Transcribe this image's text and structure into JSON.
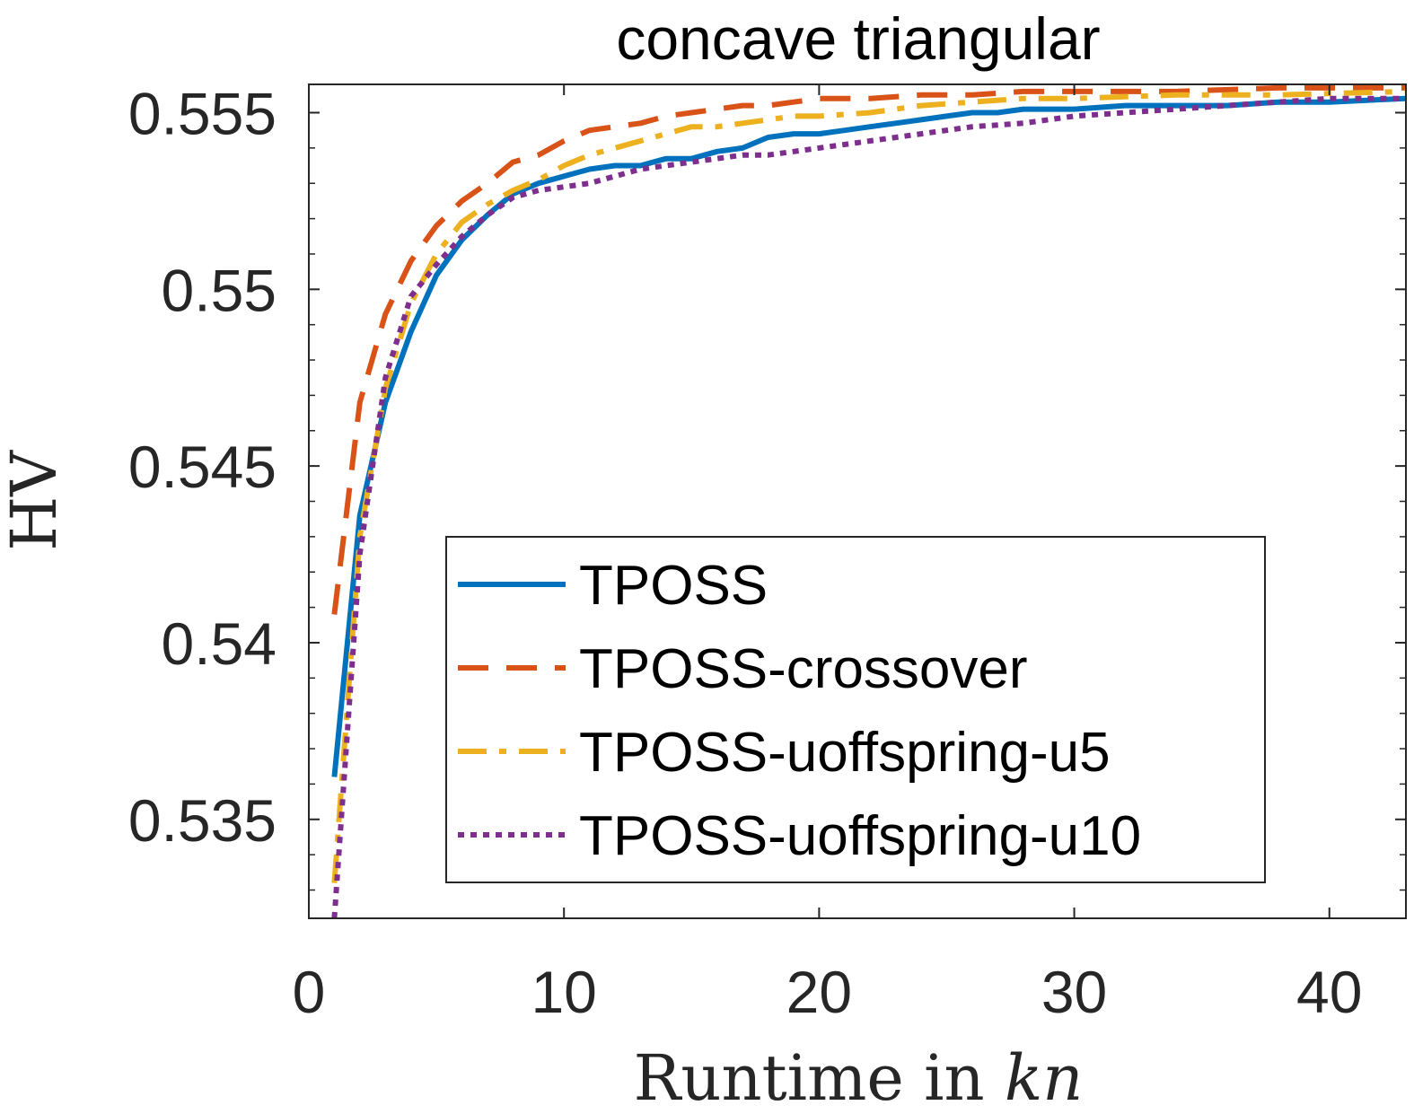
{
  "chart_data": {
    "type": "line",
    "title": "concave triangular",
    "xlabel": "Runtime in ",
    "xlabel_italic": "kn",
    "ylabel": "HV",
    "xlim": [
      0,
      43
    ],
    "ylim": [
      0.5322,
      0.5558
    ],
    "xticks": [
      0,
      10,
      20,
      30,
      40
    ],
    "xtick_labels": [
      "0",
      "10",
      "20",
      "30",
      "40"
    ],
    "yticks": [
      0.535,
      0.54,
      0.545,
      0.55,
      0.555
    ],
    "ytick_labels": [
      "0.535",
      "0.54",
      "0.545",
      "0.55",
      "0.555"
    ],
    "grid": false,
    "legend_position": "bottom-right",
    "series": [
      {
        "name": "TPOSS",
        "color": "#0072BD",
        "style": "solid",
        "x": [
          1,
          2,
          3,
          4,
          5,
          6,
          7,
          8,
          9,
          10,
          11,
          12,
          13,
          14,
          15,
          16,
          17,
          18,
          19,
          20,
          21,
          22,
          23,
          24,
          25,
          26,
          27,
          28,
          29,
          30,
          32,
          34,
          36,
          38,
          40,
          43
        ],
        "y": [
          0.5362,
          0.5436,
          0.5468,
          0.5488,
          0.5504,
          0.5514,
          0.5521,
          0.5527,
          0.553,
          0.5532,
          0.5534,
          0.5535,
          0.5535,
          0.5537,
          0.5537,
          0.5539,
          0.554,
          0.5543,
          0.5544,
          0.5544,
          0.5545,
          0.5546,
          0.5547,
          0.5548,
          0.5549,
          0.555,
          0.555,
          0.5551,
          0.5551,
          0.5551,
          0.5552,
          0.5552,
          0.5552,
          0.5553,
          0.5553,
          0.5554
        ]
      },
      {
        "name": "TPOSS-crossover",
        "color": "#D95319",
        "style": "dashed",
        "x": [
          1,
          2,
          3,
          4,
          5,
          6,
          7,
          8,
          9,
          10,
          11,
          12,
          13,
          14,
          15,
          16,
          17,
          18,
          19,
          20,
          22,
          24,
          26,
          28,
          30,
          34,
          38,
          43
        ],
        "y": [
          0.5408,
          0.5468,
          0.5493,
          0.5508,
          0.5518,
          0.5525,
          0.553,
          0.5536,
          0.5538,
          0.5542,
          0.5545,
          0.5546,
          0.5547,
          0.5549,
          0.555,
          0.5551,
          0.5552,
          0.5552,
          0.5553,
          0.5554,
          0.5554,
          0.5555,
          0.5555,
          0.5556,
          0.5556,
          0.5556,
          0.5557,
          0.5557
        ]
      },
      {
        "name": "TPOSS-uoffspring-u5",
        "color": "#EDB120",
        "style": "dash-dot",
        "x": [
          1,
          2,
          3,
          4,
          5,
          6,
          7,
          8,
          9,
          10,
          11,
          12,
          13,
          14,
          15,
          16,
          17,
          18,
          19,
          20,
          22,
          24,
          26,
          28,
          30,
          34,
          38,
          43
        ],
        "y": [
          0.5332,
          0.543,
          0.5472,
          0.5496,
          0.551,
          0.5519,
          0.5524,
          0.5528,
          0.5531,
          0.5535,
          0.5538,
          0.554,
          0.5542,
          0.5544,
          0.5546,
          0.5546,
          0.5547,
          0.5548,
          0.5549,
          0.5549,
          0.555,
          0.5552,
          0.5553,
          0.5554,
          0.5554,
          0.5555,
          0.5555,
          0.5556
        ]
      },
      {
        "name": "TPOSS-uoffspring-u10",
        "color": "#7E2F8E",
        "style": "dotted",
        "x": [
          1,
          2,
          3,
          4,
          5,
          6,
          7,
          8,
          9,
          10,
          11,
          12,
          13,
          14,
          15,
          16,
          17,
          18,
          19,
          20,
          22,
          24,
          26,
          28,
          30,
          32,
          34,
          36,
          38,
          40,
          43
        ],
        "y": [
          0.5322,
          0.5425,
          0.5475,
          0.5498,
          0.5507,
          0.5515,
          0.5521,
          0.5526,
          0.5528,
          0.5529,
          0.553,
          0.5532,
          0.5534,
          0.5535,
          0.5536,
          0.5537,
          0.5538,
          0.5538,
          0.5539,
          0.554,
          0.5542,
          0.5544,
          0.5546,
          0.5547,
          0.5549,
          0.555,
          0.5551,
          0.5552,
          0.5553,
          0.5554,
          0.5554
        ]
      }
    ]
  }
}
